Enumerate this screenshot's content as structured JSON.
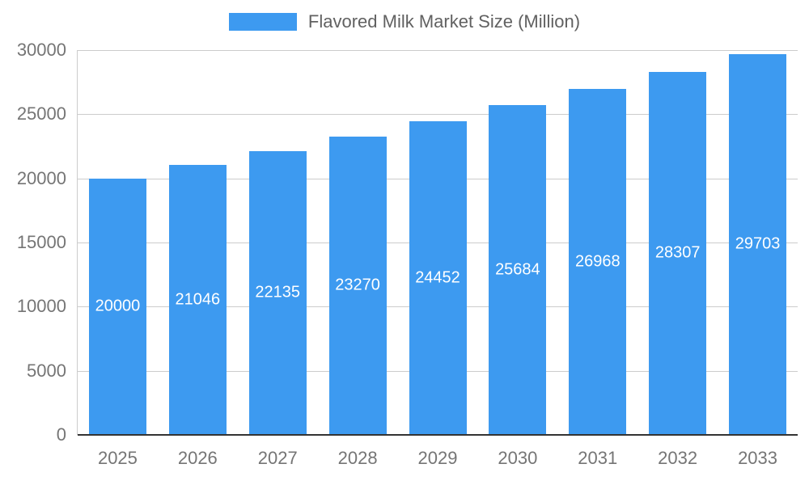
{
  "chart_data": {
    "type": "bar",
    "title": "Flavored Milk Market Size (Million)",
    "categories": [
      "2025",
      "2026",
      "2027",
      "2028",
      "2029",
      "2030",
      "2031",
      "2032",
      "2033"
    ],
    "values": [
      20000,
      21046,
      22135,
      23270,
      24452,
      25684,
      26968,
      28307,
      29703
    ],
    "xlabel": "",
    "ylabel": "",
    "ylim": [
      0,
      30000
    ],
    "yticks": [
      0,
      5000,
      10000,
      15000,
      20000,
      25000,
      30000
    ],
    "grid": true,
    "legend_position": "top",
    "bar_color": "#3D9AF0",
    "value_label_color": "#ffffff",
    "axis_text_color": "#757575",
    "grid_color": "#cccccc",
    "baseline_color": "#333333"
  }
}
